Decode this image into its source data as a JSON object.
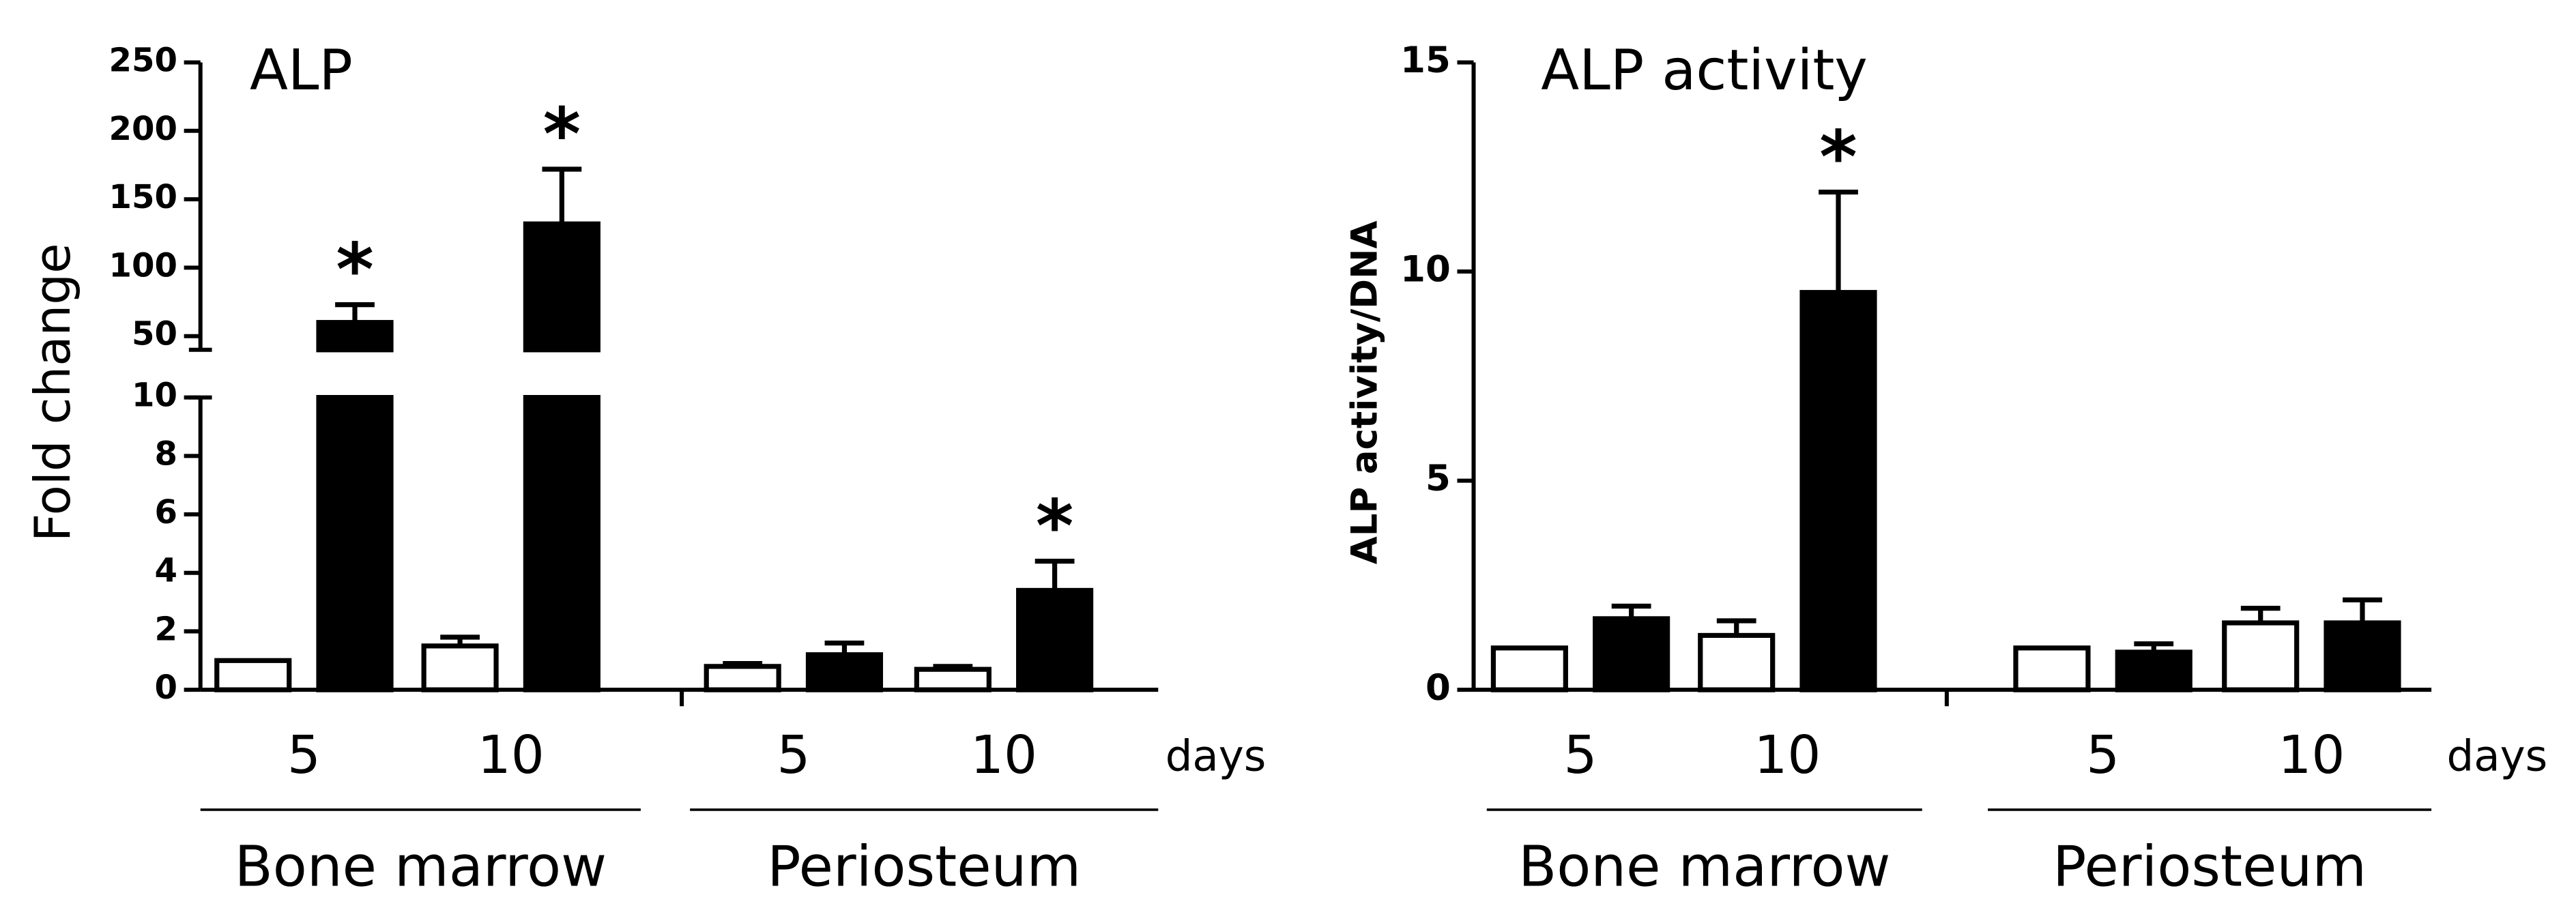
{
  "chart_data": [
    {
      "type": "bar",
      "title": "ALP",
      "ylabel": "Fold change",
      "xlabel": "days",
      "categories": [
        "5",
        "10",
        "5",
        "10"
      ],
      "groups": [
        "Bone marrow",
        "Periosteum"
      ],
      "ylim": [
        0,
        10
      ],
      "yticks": [
        0,
        2,
        4,
        6,
        8,
        10
      ],
      "y_break": {
        "ylim": [
          40,
          250
        ],
        "yticks": [
          50,
          100,
          150,
          200,
          250
        ]
      },
      "series": [
        {
          "color": "#ffffff",
          "values": [
            1.0,
            1.5,
            0.8,
            0.7
          ],
          "errors": [
            null,
            0.3,
            0.1,
            0.1
          ],
          "annotations": [
            null,
            null,
            null,
            null
          ]
        },
        {
          "color": "#000000",
          "values": [
            60,
            132,
            1.2,
            3.4
          ],
          "errors": [
            13,
            40,
            0.4,
            1.0
          ],
          "annotations": [
            "*",
            "*",
            null,
            "*"
          ]
        }
      ]
    },
    {
      "type": "bar",
      "title": "ALP activity",
      "ylabel": "ALP activity/DNA",
      "xlabel": "days",
      "categories": [
        "5",
        "10",
        "5",
        "10"
      ],
      "groups": [
        "Bone marrow",
        "Periosteum"
      ],
      "ylim": [
        0,
        15
      ],
      "yticks": [
        0,
        5,
        10,
        15
      ],
      "series": [
        {
          "color": "#ffffff",
          "values": [
            1.0,
            1.3,
            1.0,
            1.6
          ],
          "errors": [
            null,
            0.35,
            null,
            0.35
          ],
          "annotations": [
            null,
            null,
            null,
            null
          ]
        },
        {
          "color": "#000000",
          "values": [
            1.7,
            9.5,
            0.9,
            1.6
          ],
          "errors": [
            0.3,
            2.4,
            0.2,
            0.55
          ],
          "annotations": [
            null,
            "*",
            null,
            null
          ]
        }
      ]
    }
  ]
}
